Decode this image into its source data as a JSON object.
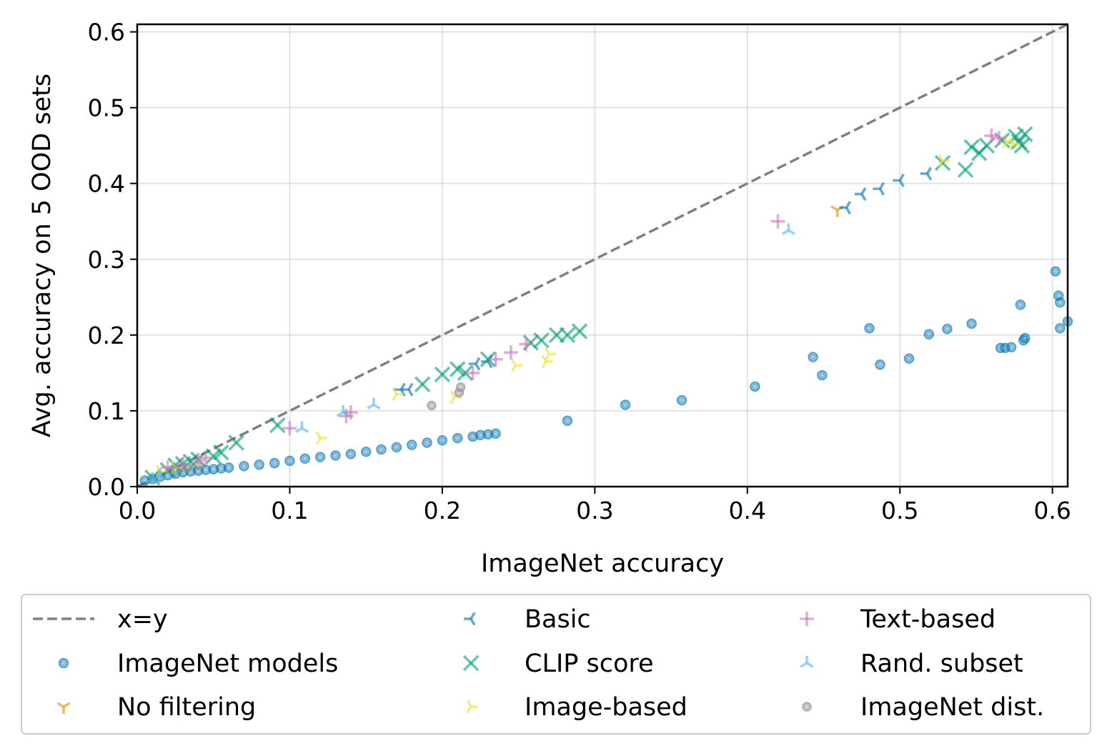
{
  "chart_data": {
    "type": "scatter",
    "xlabel": "ImageNet accuracy",
    "ylabel": "Avg. accuracy on 5 OOD sets",
    "xlim": [
      0,
      0.61
    ],
    "ylim": [
      0,
      0.61
    ],
    "xticks": [
      "0.0",
      "0.1",
      "0.2",
      "0.3",
      "0.4",
      "0.5",
      "0.6"
    ],
    "yticks": [
      "0.0",
      "0.1",
      "0.2",
      "0.3",
      "0.4",
      "0.5",
      "0.6"
    ],
    "grid": true,
    "legend_position": "below",
    "reference_line": {
      "name": "x=y",
      "color": "#808080",
      "style": "dashed"
    },
    "series": [
      {
        "name": "ImageNet models",
        "marker": "circle",
        "color": "#0173b2",
        "points": [
          [
            0.005,
            0.008
          ],
          [
            0.01,
            0.01
          ],
          [
            0.015,
            0.013
          ],
          [
            0.02,
            0.015
          ],
          [
            0.025,
            0.017
          ],
          [
            0.03,
            0.019
          ],
          [
            0.035,
            0.02
          ],
          [
            0.04,
            0.021
          ],
          [
            0.045,
            0.022
          ],
          [
            0.05,
            0.023
          ],
          [
            0.055,
            0.024
          ],
          [
            0.06,
            0.025
          ],
          [
            0.07,
            0.027
          ],
          [
            0.08,
            0.029
          ],
          [
            0.09,
            0.031
          ],
          [
            0.1,
            0.034
          ],
          [
            0.11,
            0.037
          ],
          [
            0.12,
            0.039
          ],
          [
            0.13,
            0.041
          ],
          [
            0.14,
            0.043
          ],
          [
            0.15,
            0.046
          ],
          [
            0.16,
            0.049
          ],
          [
            0.17,
            0.052
          ],
          [
            0.18,
            0.055
          ],
          [
            0.19,
            0.058
          ],
          [
            0.2,
            0.061
          ],
          [
            0.21,
            0.064
          ],
          [
            0.22,
            0.066
          ],
          [
            0.225,
            0.068
          ],
          [
            0.23,
            0.069
          ],
          [
            0.235,
            0.07
          ],
          [
            0.282,
            0.087
          ],
          [
            0.32,
            0.108
          ],
          [
            0.357,
            0.114
          ],
          [
            0.405,
            0.132
          ],
          [
            0.443,
            0.171
          ],
          [
            0.449,
            0.147
          ],
          [
            0.48,
            0.209
          ],
          [
            0.487,
            0.161
          ],
          [
            0.506,
            0.169
          ],
          [
            0.519,
            0.201
          ],
          [
            0.531,
            0.208
          ],
          [
            0.547,
            0.215
          ],
          [
            0.566,
            0.183
          ],
          [
            0.569,
            0.183
          ],
          [
            0.573,
            0.184
          ],
          [
            0.579,
            0.24
          ],
          [
            0.581,
            0.193
          ],
          [
            0.582,
            0.196
          ],
          [
            0.602,
            0.284
          ],
          [
            0.604,
            0.252
          ],
          [
            0.605,
            0.243
          ],
          [
            0.605,
            0.209
          ],
          [
            0.61,
            0.218
          ]
        ]
      },
      {
        "name": "No filtering",
        "marker": "tri_down",
        "color": "#de8f05",
        "points": [
          [
            0.459,
            0.365
          ]
        ]
      },
      {
        "name": "Basic",
        "marker": "tri_left",
        "color": "#0173b2",
        "points": [
          [
            0.465,
            0.368
          ],
          [
            0.475,
            0.386
          ],
          [
            0.487,
            0.393
          ],
          [
            0.5,
            0.404
          ],
          [
            0.518,
            0.413
          ],
          [
            0.173,
            0.128
          ],
          [
            0.178,
            0.128
          ],
          [
            0.222,
            0.162
          ],
          [
            0.23,
            0.165
          ]
        ]
      },
      {
        "name": "CLIP score",
        "marker": "x",
        "color": "#029e73",
        "points": [
          [
            0.01,
            0.012
          ],
          [
            0.02,
            0.022
          ],
          [
            0.025,
            0.028
          ],
          [
            0.03,
            0.03
          ],
          [
            0.035,
            0.033
          ],
          [
            0.04,
            0.036
          ],
          [
            0.05,
            0.04
          ],
          [
            0.055,
            0.045
          ],
          [
            0.065,
            0.058
          ],
          [
            0.092,
            0.081
          ],
          [
            0.187,
            0.135
          ],
          [
            0.2,
            0.148
          ],
          [
            0.21,
            0.155
          ],
          [
            0.215,
            0.15
          ],
          [
            0.23,
            0.168
          ],
          [
            0.258,
            0.19
          ],
          [
            0.265,
            0.193
          ],
          [
            0.275,
            0.2
          ],
          [
            0.282,
            0.2
          ],
          [
            0.29,
            0.205
          ],
          [
            0.528,
            0.427
          ],
          [
            0.543,
            0.418
          ],
          [
            0.547,
            0.448
          ],
          [
            0.552,
            0.44
          ],
          [
            0.557,
            0.45
          ],
          [
            0.567,
            0.457
          ],
          [
            0.576,
            0.462
          ],
          [
            0.578,
            0.455
          ],
          [
            0.582,
            0.465
          ],
          [
            0.58,
            0.45
          ]
        ]
      },
      {
        "name": "Image-based",
        "marker": "tri_right",
        "color": "#ece133",
        "points": [
          [
            0.015,
            0.02
          ],
          [
            0.025,
            0.025
          ],
          [
            0.12,
            0.064
          ],
          [
            0.17,
            0.122
          ],
          [
            0.208,
            0.118
          ],
          [
            0.248,
            0.16
          ],
          [
            0.268,
            0.165
          ],
          [
            0.27,
            0.175
          ],
          [
            0.528,
            0.43
          ],
          [
            0.57,
            0.455
          ],
          [
            0.574,
            0.452
          ]
        ]
      },
      {
        "name": "Text-based",
        "marker": "plus",
        "color": "#cc78bc",
        "points": [
          [
            0.02,
            0.025
          ],
          [
            0.03,
            0.03
          ],
          [
            0.04,
            0.035
          ],
          [
            0.045,
            0.038
          ],
          [
            0.1,
            0.077
          ],
          [
            0.137,
            0.093
          ],
          [
            0.14,
            0.098
          ],
          [
            0.22,
            0.15
          ],
          [
            0.235,
            0.168
          ],
          [
            0.245,
            0.177
          ],
          [
            0.255,
            0.188
          ],
          [
            0.42,
            0.35
          ],
          [
            0.56,
            0.463
          ],
          [
            0.565,
            0.46
          ]
        ]
      },
      {
        "name": "Rand. subset",
        "marker": "tri_up",
        "color": "#56b4e9",
        "points": [
          [
            0.01,
            0.01
          ],
          [
            0.015,
            0.015
          ],
          [
            0.108,
            0.077
          ],
          [
            0.135,
            0.098
          ],
          [
            0.155,
            0.108
          ],
          [
            0.427,
            0.338
          ]
        ]
      },
      {
        "name": "ImageNet dist.",
        "marker": "circle_small",
        "color": "#949494",
        "points": [
          [
            0.025,
            0.022
          ],
          [
            0.033,
            0.025
          ],
          [
            0.04,
            0.028
          ],
          [
            0.193,
            0.107
          ],
          [
            0.211,
            0.124
          ],
          [
            0.212,
            0.131
          ]
        ]
      }
    ]
  }
}
